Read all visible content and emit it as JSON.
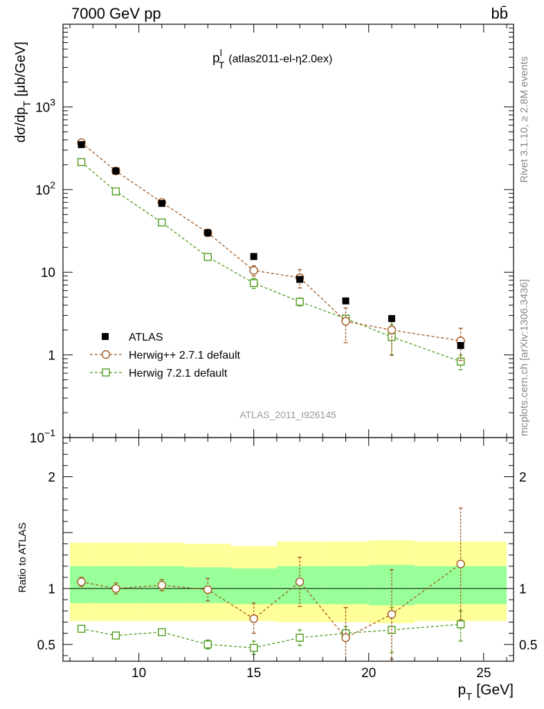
{
  "header": {
    "left": "7000 GeV pp",
    "right": "bb̄"
  },
  "side_text": {
    "rivet": "Rivet 3.1.10, ≥ 2.8M events",
    "url": "mcplots.cern.ch [arXiv:1306.3436]"
  },
  "chart_data": [
    {
      "type": "scatter",
      "title_main": "p",
      "title_sup": "l",
      "title_sub": "T",
      "title_rest": "(atlas2011-el-η2.0ex)",
      "watermark": "ATLAS_2011_I926145",
      "ylabel_main": "dσ/dp",
      "ylabel_sub": "T",
      "ylabel_unit": "[μb/GeV]",
      "yscale": "log",
      "ylim": [
        0.1,
        10000
      ],
      "xlim": [
        6.7,
        26.3
      ],
      "y_tick_labels": [
        {
          "value": 0.1,
          "base": "10",
          "exp": "−1"
        },
        {
          "value": 1,
          "base": "1",
          "exp": ""
        },
        {
          "value": 10,
          "base": "10",
          "exp": ""
        },
        {
          "value": 100,
          "base": "10",
          "exp": "2"
        },
        {
          "value": 1000,
          "base": "10",
          "exp": "3"
        }
      ],
      "legend": [
        {
          "label": "ATLAS",
          "marker": "square-filled",
          "color": "#000000"
        },
        {
          "label": "Herwig++ 2.7.1 default",
          "marker": "circle-open",
          "color": "#a0561e"
        },
        {
          "label": "Herwig 7.2.1 default",
          "marker": "square-open",
          "color": "#4d9a1a"
        }
      ],
      "series": [
        {
          "name": "ATLAS",
          "color": "#000000",
          "x": [
            7.5,
            9,
            11,
            13,
            15,
            17,
            19,
            21,
            24
          ],
          "y": [
            350,
            168,
            68,
            30,
            15.5,
            8.2,
            4.5,
            2.75,
            1.3
          ]
        },
        {
          "name": "Herwig++ 2.7.1 default",
          "color": "#a0561e",
          "x": [
            7.5,
            9,
            11,
            13,
            15,
            17,
            19,
            21,
            24
          ],
          "y": [
            370,
            168,
            70,
            30,
            10.5,
            8.6,
            2.55,
            2.0,
            1.48
          ],
          "yerr_rel": [
            0.04,
            0.03,
            0.04,
            0.07,
            0.14,
            0.25,
            0.45,
            0.5,
            0.42
          ]
        },
        {
          "name": "Herwig 7.2.1 default",
          "color": "#4d9a1a",
          "x": [
            7.5,
            9,
            11,
            13,
            15,
            17,
            19,
            21,
            24
          ],
          "y": [
            215,
            95,
            40,
            15.3,
            7.4,
            4.4,
            2.75,
            1.65,
            0.83
          ],
          "yerr_rel": [
            0.02,
            0.02,
            0.03,
            0.08,
            0.14,
            0.11,
            0.1,
            0.4,
            0.2
          ]
        }
      ]
    },
    {
      "type": "scatter",
      "ylabel": "Ratio to ATLAS",
      "xlabel_main": "p",
      "xlabel_sub": "T",
      "xlabel_unit": "[GeV]",
      "ylim": [
        0.35,
        2.35
      ],
      "xlim": [
        6.7,
        26.3
      ],
      "x_ticks": [
        10,
        15,
        20,
        25
      ],
      "y_ticks": [
        0.5,
        1,
        2
      ],
      "bands": {
        "edges": [
          7,
          8,
          10,
          12,
          14,
          16,
          18,
          20,
          22,
          24,
          26
        ],
        "yellow_color": "#ffff99",
        "green_color": "#99ff99",
        "yellow": [
          [
            0.71,
            1.41
          ],
          [
            0.71,
            1.41
          ],
          [
            0.71,
            1.41
          ],
          [
            0.71,
            1.4
          ],
          [
            0.71,
            1.38
          ],
          [
            0.7,
            1.42
          ],
          [
            0.7,
            1.42
          ],
          [
            0.69,
            1.43
          ],
          [
            0.71,
            1.42
          ],
          [
            0.71,
            1.42
          ]
        ],
        "green": [
          [
            0.87,
            1.2
          ],
          [
            0.87,
            1.2
          ],
          [
            0.87,
            1.2
          ],
          [
            0.87,
            1.19
          ],
          [
            0.86,
            1.18
          ],
          [
            0.86,
            1.2
          ],
          [
            0.86,
            1.2
          ],
          [
            0.85,
            1.21
          ],
          [
            0.86,
            1.2
          ],
          [
            0.86,
            1.2
          ]
        ]
      },
      "series": [
        {
          "name": "Herwig++ 2.7.1 default",
          "color": "#a0561e",
          "x": [
            7.5,
            9,
            11,
            13,
            15,
            17,
            19,
            21,
            24
          ],
          "y": [
            1.06,
            1.0,
            1.03,
            0.99,
            0.73,
            1.06,
            0.56,
            0.77,
            1.22
          ],
          "yerr": [
            [
              0.04,
              0.04
            ],
            [
              0.05,
              0.05
            ],
            [
              0.05,
              0.05
            ],
            [
              0.1,
              0.1
            ],
            [
              0.13,
              0.14
            ],
            [
              0.22,
              0.22
            ],
            [
              0.27,
              0.27
            ],
            [
              0.4,
              0.4
            ],
            [
              0.5,
              0.5
            ]
          ]
        },
        {
          "name": "Herwig 7.2.1 default",
          "color": "#4d9a1a",
          "x": [
            7.5,
            9,
            11,
            13,
            15,
            17,
            19,
            21,
            24
          ],
          "y": [
            0.64,
            0.58,
            0.61,
            0.5,
            0.47,
            0.56,
            0.6,
            0.63,
            0.68
          ],
          "yerr": [
            [
              0.01,
              0.01
            ],
            [
              0.01,
              0.01
            ],
            [
              0.02,
              0.02
            ],
            [
              0.04,
              0.04
            ],
            [
              0.06,
              0.06
            ],
            [
              0.07,
              0.07
            ],
            [
              0.06,
              0.06
            ],
            [
              0.2,
              0.2
            ],
            [
              0.15,
              0.12
            ]
          ]
        }
      ]
    }
  ]
}
